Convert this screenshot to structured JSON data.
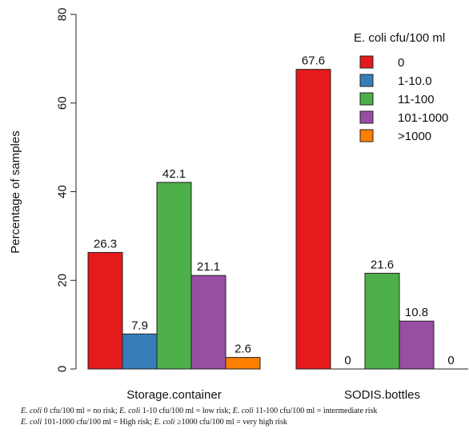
{
  "chart_data": {
    "type": "bar",
    "title": "",
    "xlabel": "",
    "ylabel": "Percentage of samples",
    "ylim": [
      0,
      80
    ],
    "yticks": [
      0,
      20,
      40,
      60,
      80
    ],
    "grid": false,
    "legend_position": "top-right",
    "legend_title": "E. coli cfu/100 ml",
    "categories": [
      "Storage.container",
      "SODIS.bottles"
    ],
    "series": [
      {
        "name": "0",
        "color": "#e41a1c",
        "values": [
          26.3,
          67.6
        ],
        "labels": [
          "26.3",
          "67.6"
        ]
      },
      {
        "name": "1-10.0",
        "color": "#377eb8",
        "values": [
          7.9,
          0
        ],
        "labels": [
          "7.9",
          "0"
        ]
      },
      {
        "name": "11-100",
        "color": "#4daf4a",
        "values": [
          42.1,
          21.6
        ],
        "labels": [
          "42.1",
          "21.6"
        ]
      },
      {
        "name": "101-1000",
        "color": "#984ea3",
        "values": [
          21.1,
          10.8
        ],
        "labels": [
          "21.1",
          "10.8"
        ]
      },
      {
        "name": ">1000",
        "color": "#ff7f00",
        "values": [
          2.6,
          0
        ],
        "labels": [
          "2.6",
          "0"
        ]
      }
    ]
  },
  "footnote": {
    "line1": [
      {
        "italic": "E. coli",
        "text": " 0 cfu/100 ml = no risk; "
      },
      {
        "italic": "E. coli",
        "text": " 1-10 cfu/100 ml = low risk; "
      },
      {
        "italic": "E. coli",
        "text": " 11-100 cfu/100 ml = intermediate risk"
      }
    ],
    "line2": [
      {
        "italic": "E. coli",
        "text": " 101-1000 cfu/100 ml = High risk; "
      },
      {
        "italic": "E. coli",
        "text": " ≥1000 cfu/100 ml = very high risk"
      }
    ]
  }
}
